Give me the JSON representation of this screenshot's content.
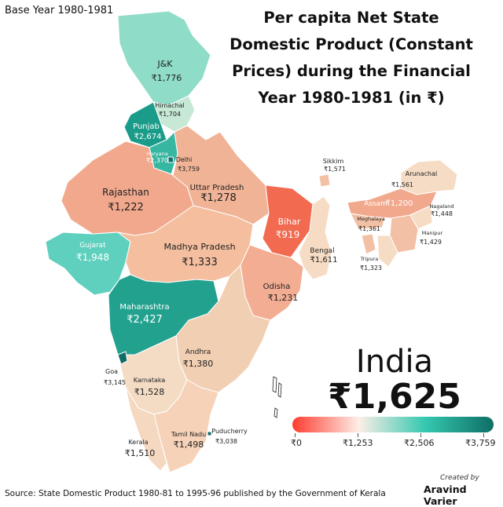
{
  "base_year": "Base Year 1980-1981",
  "title_lines": [
    "Per capita Net State",
    "Domestic Product (Constant",
    "Prices) during the Financial",
    "Year 1980-1981 (in ₹)"
  ],
  "states": {
    "jk": {
      "name": "J&K",
      "value": "₹1,776"
    },
    "himachal": {
      "name": "Himachal",
      "value": "₹1,704"
    },
    "punjab": {
      "name": "Punjab",
      "value": "₹2,674"
    },
    "haryana": {
      "name": "Haryana",
      "value": "₹2,370"
    },
    "delhi": {
      "name": "Delhi",
      "value": "₹3,759"
    },
    "rajasthan": {
      "name": "Rajasthan",
      "value": "₹1,222"
    },
    "uttar_pradesh": {
      "name": "Uttar Pradesh",
      "value": "₹1,278"
    },
    "bihar": {
      "name": "Bihar",
      "value": "₹919"
    },
    "gujarat": {
      "name": "Gujarat",
      "value": "₹1,948"
    },
    "madhya_pradesh": {
      "name": "Madhya Pradesh",
      "value": "₹1,333"
    },
    "bengal": {
      "name": "Bengal",
      "value": "₹1,611"
    },
    "odisha": {
      "name": "Odisha",
      "value": "₹1,231"
    },
    "maharashtra": {
      "name": "Maharashtra",
      "value": "₹2,427"
    },
    "andhra": {
      "name": "Andhra",
      "value": "₹1,380"
    },
    "goa": {
      "name": "Goa",
      "value": "₹3,145"
    },
    "karnataka": {
      "name": "Karnataka",
      "value": "₹1,528"
    },
    "kerala": {
      "name": "Kerala",
      "value": "₹1,510"
    },
    "tamil_nadu": {
      "name": "Tamil Nadu",
      "value": "₹1,498"
    },
    "puducherry": {
      "name": "Puducherry",
      "value": "₹3,038"
    },
    "sikkim": {
      "name": "Sikkim",
      "value": "₹1,571"
    },
    "arunachal": {
      "name": "Arunachal",
      "value": "₹1,561"
    },
    "assam": {
      "name": "Assam",
      "value": "₹1,200"
    },
    "meghalaya": {
      "name": "Meghalaya",
      "value": "₹1,361"
    },
    "nagaland": {
      "name": "Nagaland",
      "value": "₹1,448"
    },
    "manipur": {
      "name": "Manipur",
      "value": "₹1,429"
    },
    "tripura": {
      "name": "Tripura",
      "value": "₹1,323"
    }
  },
  "india": {
    "label": "India",
    "value": "₹1,625"
  },
  "legend": {
    "ticks": [
      "₹0",
      "₹1,253",
      "₹2,506",
      "₹3,759"
    ],
    "colors": {
      "low": "#ff3b30",
      "mid": "#fdeee6",
      "high": "#35c8b0",
      "max": "#0e6e66"
    }
  },
  "colors": {
    "jk": "#8fdcc8",
    "himachal": "#c6e8d4",
    "punjab": "#1b9c8a",
    "haryana": "#37b6a2",
    "delhi": "#0e6e66",
    "rajasthan": "#f2a88d",
    "uttar_pradesh": "#f1b396",
    "bihar": "#f26a50",
    "gujarat": "#5fd0bd",
    "madhya_pradesh": "#f4be9f",
    "bengal": "#f6dcc4",
    "odisha": "#f3ad92",
    "maharashtra": "#23a18f",
    "andhra": "#f1cfb3",
    "karnataka": "#f4dcc4",
    "kerala": "#f4d8bf",
    "tamil_nadu": "#f5d2b8",
    "northeast": "#f2c0a4",
    "assam": "#f2a88d",
    "bengal_light": "#f6dcc4"
  },
  "credit": {
    "created_by": "Created by",
    "author": "Aravind Varier"
  },
  "source": "Source: State Domestic Product 1980-81 to 1995-96 published by the Government of Kerala"
}
